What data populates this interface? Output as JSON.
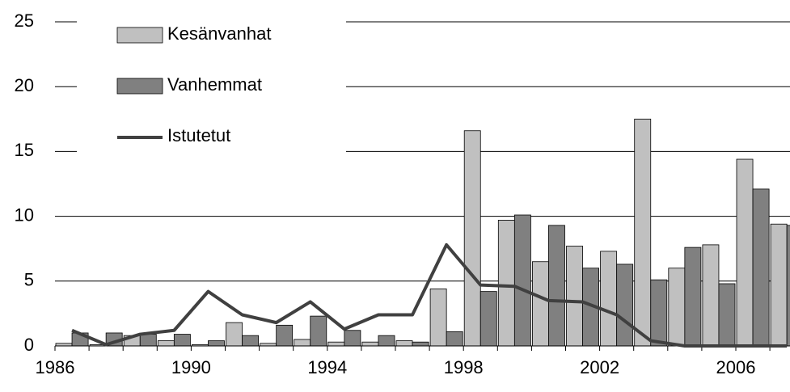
{
  "chart_data": {
    "type": "bar",
    "categories": [
      "1986",
      null,
      null,
      null,
      "1990",
      null,
      null,
      null,
      "1994",
      null,
      null,
      null,
      "1998",
      null,
      null,
      null,
      "2002",
      null,
      null,
      null,
      "2006",
      null
    ],
    "series": [
      {
        "name": "Kesänvanhat",
        "type": "bar",
        "color": "#c0c0c0",
        "values": [
          0.2,
          0.1,
          0.8,
          0.4,
          0.1,
          1.8,
          0.2,
          0.5,
          0.3,
          0.3,
          0.4,
          4.4,
          16.6,
          9.7,
          6.5,
          7.7,
          7.3,
          17.5,
          6.0,
          7.8,
          14.4,
          9.4
        ]
      },
      {
        "name": "Vanhemmat",
        "type": "bar",
        "color": "#808080",
        "values": [
          1.0,
          1.0,
          0.9,
          0.9,
          0.4,
          0.8,
          1.6,
          2.3,
          1.2,
          0.8,
          0.3,
          1.1,
          4.2,
          10.1,
          9.3,
          6.0,
          6.3,
          5.1,
          7.6,
          4.8,
          12.1,
          9.3
        ]
      },
      {
        "name": "Istutetut",
        "type": "line",
        "color": "#404040",
        "values": [
          1.2,
          0.1,
          0.9,
          1.2,
          4.2,
          2.4,
          1.8,
          3.4,
          1.3,
          2.4,
          2.4,
          7.8,
          4.7,
          4.6,
          3.5,
          3.4,
          2.4,
          0.4,
          0,
          0,
          0,
          0
        ]
      }
    ],
    "ylim": [
      0,
      25
    ],
    "yticks": [
      0,
      5,
      10,
      15,
      20,
      25
    ],
    "grid": true,
    "legend": "top-left"
  }
}
